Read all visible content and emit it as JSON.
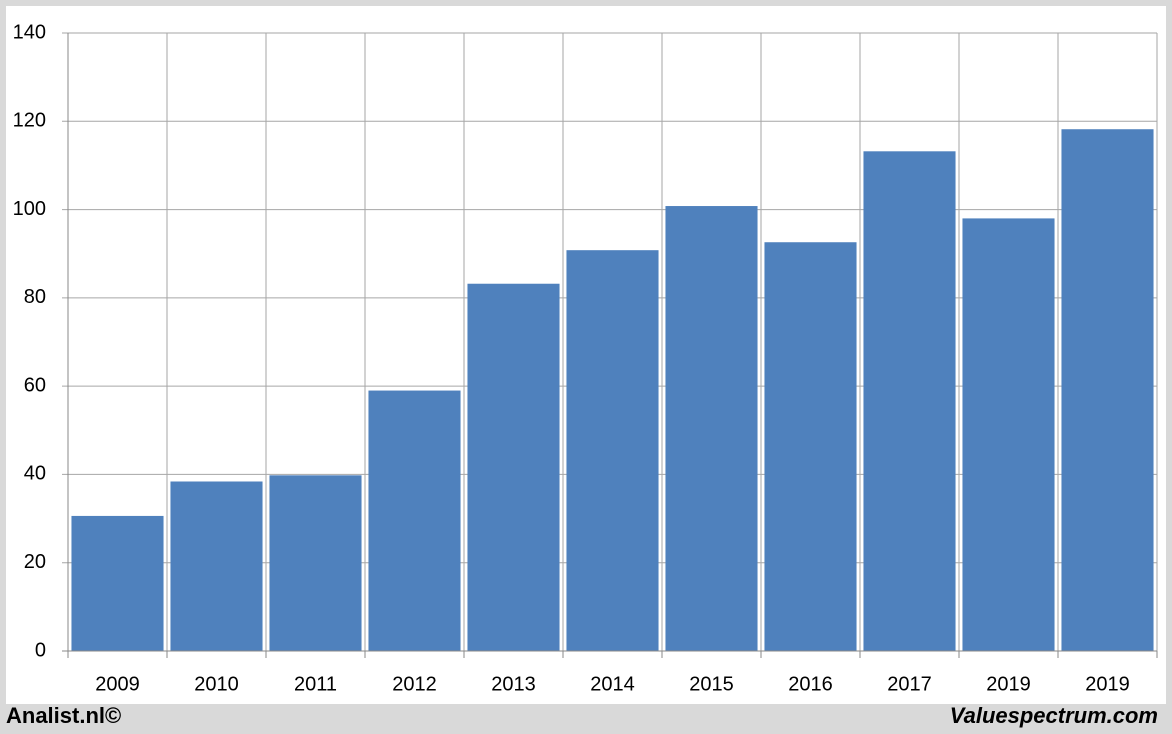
{
  "chart_data": {
    "type": "bar",
    "categories": [
      "2009",
      "2010",
      "2011",
      "2012",
      "2013",
      "2014",
      "2015",
      "2016",
      "2017",
      "2019",
      "2019"
    ],
    "values": [
      30.6,
      38.4,
      39.8,
      59,
      83.2,
      90.8,
      100.8,
      92.6,
      113.2,
      98,
      118.2
    ],
    "color": "#4f81bd",
    "ylim": [
      0,
      140
    ],
    "yticks": [
      0,
      20,
      40,
      60,
      80,
      100,
      120,
      140
    ],
    "grid": true
  },
  "footer": {
    "left": "Analist.nl©",
    "right": "Valuespectrum.com"
  }
}
